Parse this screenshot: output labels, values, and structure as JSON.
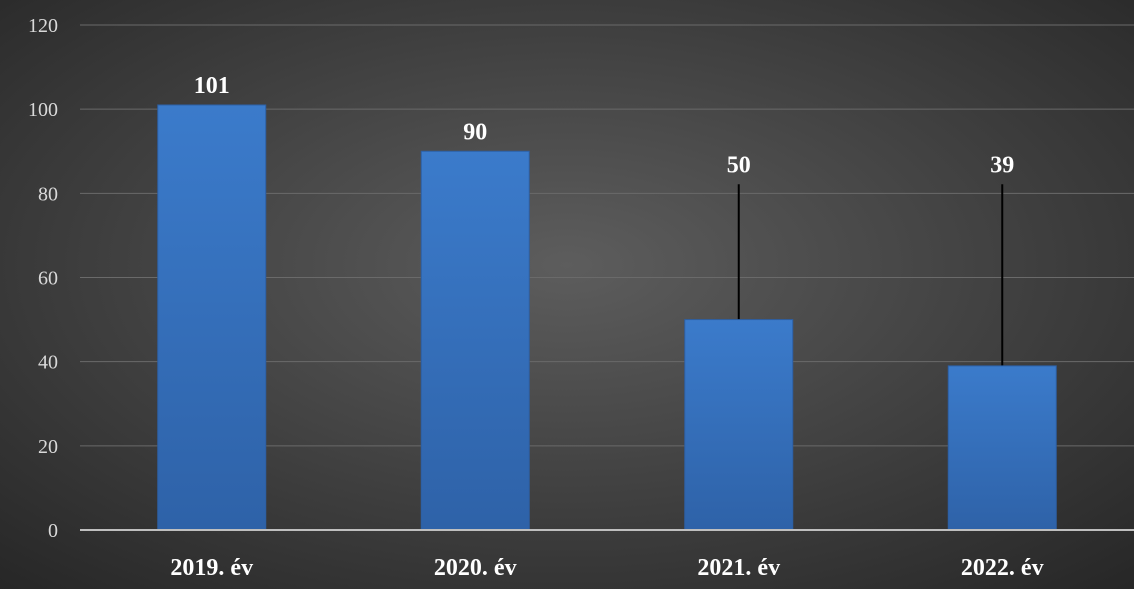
{
  "chart_data": {
    "type": "bar",
    "categories": [
      "2019. év",
      "2020. év",
      "2021. év",
      "2022. év"
    ],
    "values": [
      101,
      90,
      50,
      39
    ],
    "data_labels": [
      "101",
      "90",
      "50",
      "39"
    ],
    "title": "",
    "xlabel": "",
    "ylabel": "",
    "ylim": [
      0,
      120
    ],
    "yticks": [
      0,
      20,
      40,
      60,
      80,
      100,
      120
    ],
    "ytick_labels": [
      "0",
      "20",
      "40",
      "60",
      "80",
      "100",
      "120"
    ],
    "grid": true,
    "legend": "none",
    "leader_lines": [
      false,
      false,
      true,
      true
    ],
    "colors": {
      "bar": "#3a78c6",
      "bar_dark": "#2d5fa3",
      "background_center": "#5a5a5a",
      "background_edge": "#2b2b2b",
      "grid": "#6a6a6a",
      "axis": "#bfbfbf",
      "text": "#ffffff",
      "leader_line": "#000000"
    }
  }
}
